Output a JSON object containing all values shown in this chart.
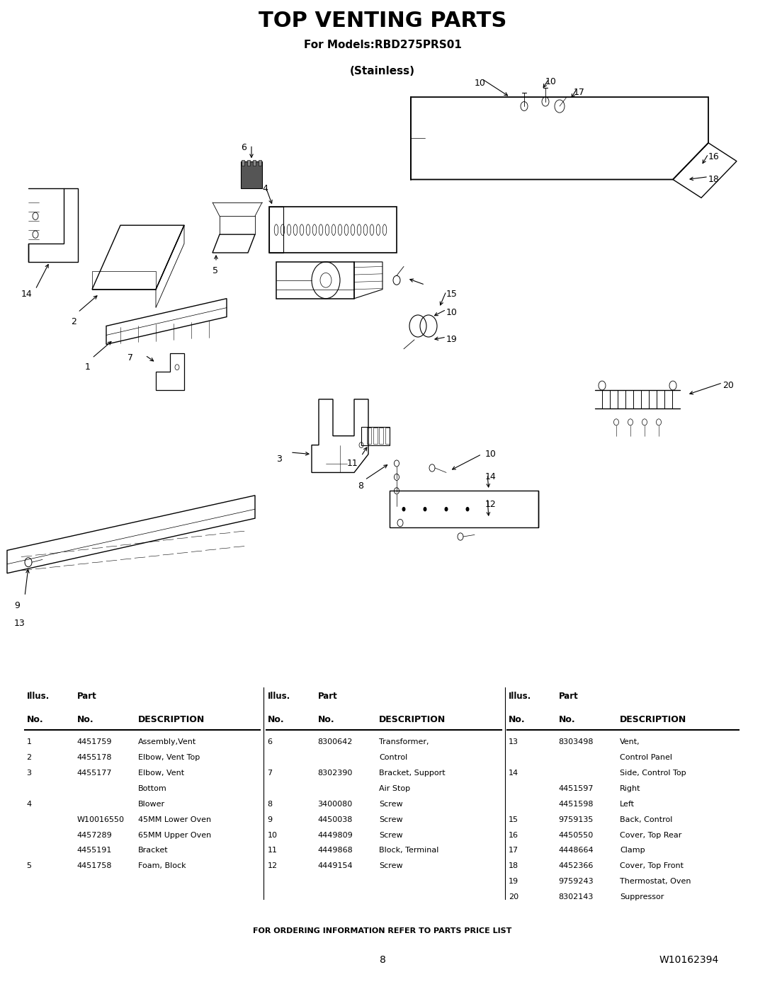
{
  "title": "TOP VENTING PARTS",
  "subtitle1": "For Models:RBD275PRS01",
  "subtitle2": "(Stainless)",
  "bg_color": "#ffffff",
  "col1_rows": [
    [
      "1",
      "4451759",
      "Assembly,Vent"
    ],
    [
      "2",
      "4455178",
      "Elbow, Vent Top"
    ],
    [
      "3",
      "4455177",
      "Elbow, Vent"
    ],
    [
      "",
      "",
      "Bottom"
    ],
    [
      "4",
      "",
      "Blower"
    ],
    [
      "",
      "W10016550",
      "45MM Lower Oven"
    ],
    [
      "",
      "4457289",
      "65MM Upper Oven"
    ],
    [
      "",
      "4455191",
      "Bracket"
    ],
    [
      "5",
      "4451758",
      "Foam, Block"
    ]
  ],
  "col2_rows": [
    [
      "6",
      "8300642",
      "Transformer,"
    ],
    [
      "",
      "",
      "Control"
    ],
    [
      "7",
      "8302390",
      "Bracket, Support"
    ],
    [
      "",
      "",
      "Air Stop"
    ],
    [
      "8",
      "3400080",
      "Screw"
    ],
    [
      "9",
      "4450038",
      "Screw"
    ],
    [
      "10",
      "4449809",
      "Screw"
    ],
    [
      "11",
      "4449868",
      "Block, Terminal"
    ],
    [
      "12",
      "4449154",
      "Screw"
    ]
  ],
  "col3_rows": [
    [
      "13",
      "8303498",
      "Vent,"
    ],
    [
      "",
      "",
      "Control Panel"
    ],
    [
      "14",
      "",
      "Side, Control Top"
    ],
    [
      "",
      "4451597",
      "Right"
    ],
    [
      "",
      "4451598",
      "Left"
    ],
    [
      "15",
      "9759135",
      "Back, Control"
    ],
    [
      "16",
      "4450550",
      "Cover, Top Rear"
    ],
    [
      "17",
      "4448664",
      "Clamp"
    ],
    [
      "18",
      "4452366",
      "Cover, Top Front"
    ],
    [
      "19",
      "9759243",
      "Thermostat, Oven"
    ],
    [
      "20",
      "8302143",
      "Suppressor"
    ]
  ],
  "footer_text": "FOR ORDERING INFORMATION REFER TO PARTS PRICE LIST",
  "page_num": "8",
  "doc_num": "W10162394"
}
